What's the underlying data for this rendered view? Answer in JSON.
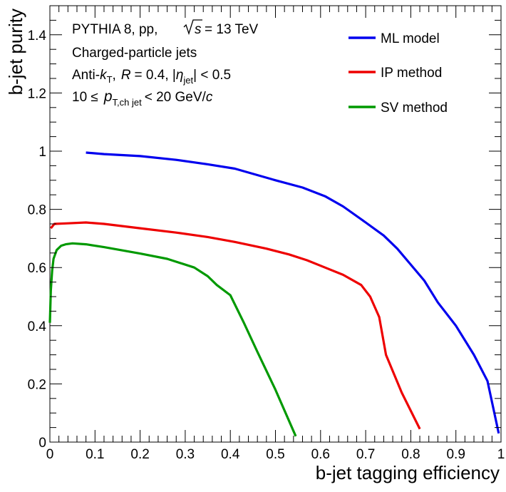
{
  "chart_data": {
    "type": "line",
    "xlabel": "b-jet tagging efficiency",
    "ylabel": "b-jet purity",
    "xlim": [
      0,
      1
    ],
    "ylim": [
      0,
      1.5
    ],
    "x_ticks": [
      0,
      0.1,
      0.2,
      0.3,
      0.4,
      0.5,
      0.6,
      0.7,
      0.8,
      0.9,
      1
    ],
    "x_tick_labels": [
      "0",
      "0.1",
      "0.2",
      "0.3",
      "0.4",
      "0.5",
      "0.6",
      "0.7",
      "0.8",
      "0.9",
      "1"
    ],
    "y_ticks": [
      0,
      0.2,
      0.4,
      0.6,
      0.8,
      1,
      1.2,
      1.4
    ],
    "y_tick_labels": [
      "0",
      "0.2",
      "0.4",
      "0.6",
      "0.8",
      "1",
      "1.2",
      "1.4"
    ],
    "grid": false,
    "legend_position": "top-right",
    "annotations": {
      "line1_a": "PYTHIA 8, pp,",
      "line1_b": "s",
      "line1_c": "= 13 TeV",
      "line2": "Charged-particle jets",
      "line3_a": "Anti-",
      "line3_k": "k",
      "line3_ksub": "T",
      "line3_b": ",",
      "line3_R": "R",
      "line3_c": "= 0.4, |",
      "line3_eta": "η",
      "line3_etasub": "jet",
      "line3_d": "| < 0.5",
      "line4_a": "10 ≤",
      "line4_p": "p",
      "line4_psub": "T,ch jet",
      "line4_b": "< 20 GeV/",
      "line4_c": "c"
    },
    "series": [
      {
        "name": "ML model",
        "color": "#0000ee",
        "x": [
          0.08,
          0.12,
          0.2,
          0.28,
          0.35,
          0.41,
          0.5,
          0.56,
          0.61,
          0.65,
          0.7,
          0.74,
          0.77,
          0.8,
          0.83,
          0.86,
          0.9,
          0.94,
          0.97,
          0.995
        ],
        "y": [
          0.995,
          0.99,
          0.983,
          0.97,
          0.955,
          0.94,
          0.9,
          0.875,
          0.845,
          0.81,
          0.755,
          0.71,
          0.665,
          0.61,
          0.555,
          0.48,
          0.4,
          0.3,
          0.21,
          0.03
        ]
      },
      {
        "name": "IP method",
        "color": "#ee0000",
        "x": [
          0.002,
          0.01,
          0.04,
          0.08,
          0.12,
          0.2,
          0.28,
          0.35,
          0.41,
          0.48,
          0.53,
          0.57,
          0.61,
          0.65,
          0.69,
          0.71,
          0.73,
          0.745,
          0.78,
          0.82
        ],
        "y": [
          0.735,
          0.75,
          0.752,
          0.755,
          0.75,
          0.735,
          0.72,
          0.705,
          0.688,
          0.665,
          0.645,
          0.625,
          0.6,
          0.575,
          0.54,
          0.5,
          0.43,
          0.3,
          0.17,
          0.045
        ]
      },
      {
        "name": "SV method",
        "color": "#009900",
        "x": [
          0.0,
          0.002,
          0.005,
          0.008,
          0.015,
          0.025,
          0.035,
          0.05,
          0.08,
          0.12,
          0.2,
          0.26,
          0.32,
          0.35,
          0.37,
          0.4,
          0.43,
          0.46,
          0.5,
          0.545
        ],
        "y": [
          0.41,
          0.52,
          0.59,
          0.63,
          0.66,
          0.675,
          0.68,
          0.683,
          0.68,
          0.67,
          0.648,
          0.63,
          0.6,
          0.57,
          0.54,
          0.505,
          0.41,
          0.31,
          0.18,
          0.02
        ]
      }
    ]
  }
}
